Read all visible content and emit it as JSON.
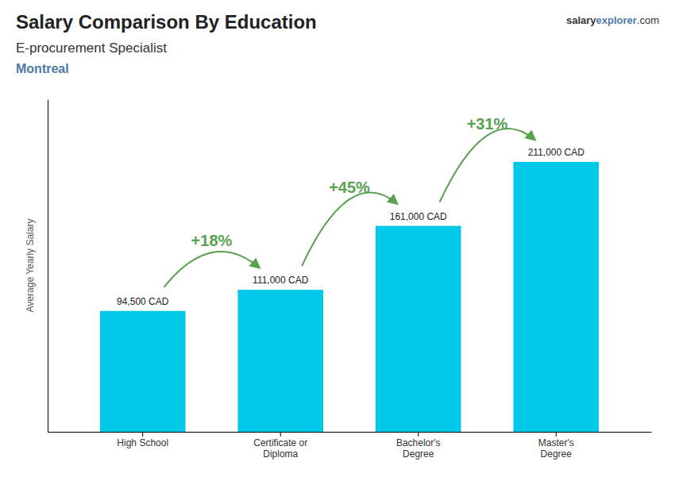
{
  "chart_data": {
    "type": "bar",
    "title": "Salary Comparison By Education",
    "subtitle": [
      "E-procurement Specialist",
      "Montreal"
    ],
    "ylabel": "Average Yearly Salary",
    "watermark": [
      "salary",
      "explorer",
      ".com"
    ],
    "categories": [
      "High School",
      "Certificate or\nDiploma",
      "Bachelor's\nDegree",
      "Master's\nDegree"
    ],
    "values": [
      94500,
      111000,
      161000,
      211000
    ],
    "value_labels": [
      "94,500 CAD",
      "111,000 CAD",
      "161,000 CAD",
      "211,000 CAD"
    ],
    "data_labels": true,
    "color": "#00c8e8",
    "ylim": [
      0,
      260000
    ],
    "tick_labels": "x",
    "annotations": [
      {
        "text": "+18%",
        "between": [
          0,
          1
        ]
      },
      {
        "text": "+45%",
        "between": [
          1,
          2
        ]
      },
      {
        "text": "+31%",
        "between": [
          2,
          3
        ]
      }
    ]
  }
}
